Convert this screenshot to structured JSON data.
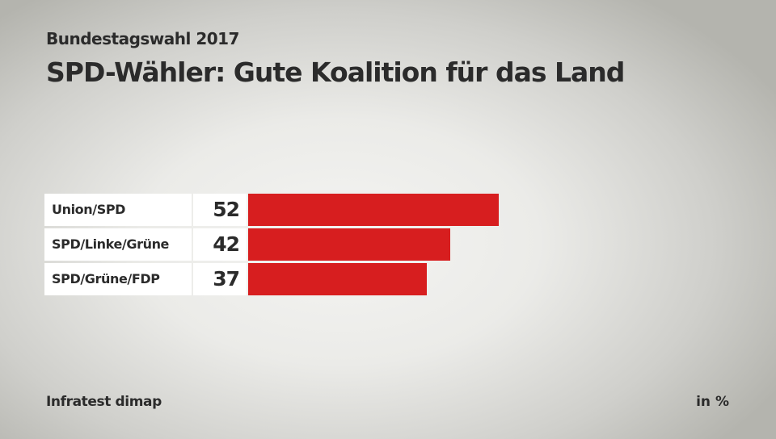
{
  "chart_data": {
    "type": "bar",
    "orientation": "horizontal",
    "subtitle": "Bundestagswahl 2017",
    "title": "SPD-Wähler: Gute Koalition für das Land",
    "categories": [
      "Union/SPD",
      "SPD/Linke/Grüne",
      "SPD/Grüne/FDP"
    ],
    "values": [
      52,
      42,
      37
    ],
    "values_display": [
      "52",
      "42",
      "37"
    ],
    "bar_color": "#d71e1f",
    "source": "Infratest dimap",
    "unit": "in %",
    "xlim": [
      0,
      100
    ]
  }
}
